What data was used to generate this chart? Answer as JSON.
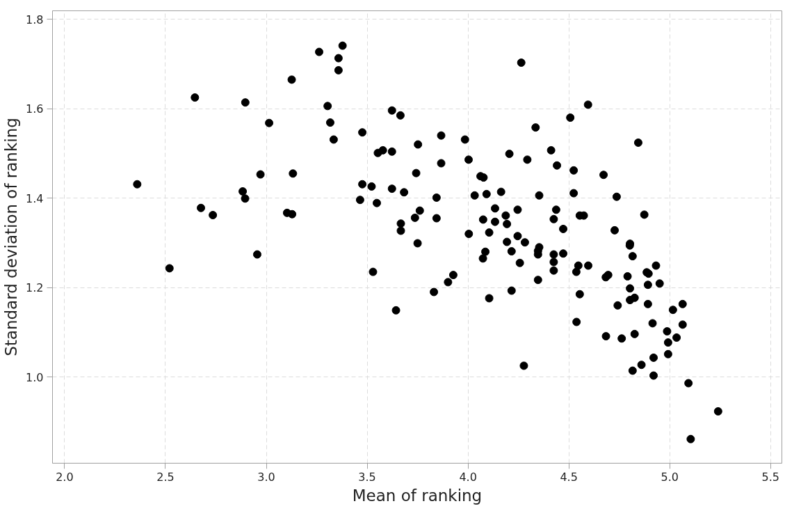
{
  "chart_data": {
    "type": "scatter",
    "xlabel": "Mean of ranking",
    "ylabel": "Standard deviation of ranking",
    "xlim": [
      1.94,
      5.556
    ],
    "ylim": [
      0.807,
      1.819
    ],
    "xticks": [
      {
        "value": 2,
        "label": "2.0"
      },
      2.5,
      {
        "value": 3,
        "label": "3.0"
      },
      3.5,
      {
        "value": 4,
        "label": "4.0"
      },
      4.5,
      {
        "value": 5,
        "label": "5.0"
      },
      5.5
    ],
    "yticks": [
      {
        "value": 1,
        "label": "1.0"
      },
      1.2,
      1.4,
      1.6,
      1.8
    ],
    "grid": true,
    "marker": "circle",
    "series": [
      {
        "color": "#000000",
        "x": [
          2.36,
          2.52,
          2.955,
          3.529,
          3.643,
          3.75,
          3.378,
          3.262,
          3.358,
          3.358,
          3.126,
          2.646,
          2.896,
          3.304,
          3.623,
          3.665,
          3.014,
          3.317,
          3.476,
          3.334,
          3.752,
          3.553,
          3.578,
          3.623,
          2.971,
          3.132,
          3.743,
          3.476,
          3.522,
          3.623,
          3.683,
          2.883,
          2.895,
          3.465,
          3.548,
          2.676,
          2.735,
          3.103,
          3.128,
          3.761,
          3.737,
          3.667,
          3.667,
          4.264,
          4.595,
          4.507,
          4.335,
          3.867,
          3.985,
          4.844,
          4.205,
          4.003,
          3.867,
          4.294,
          4.412,
          4.441,
          4.524,
          4.672,
          4.062,
          4.077,
          3.844,
          4.033,
          4.092,
          4.164,
          4.353,
          4.524,
          4.737,
          3.844,
          4.134,
          4.187,
          4.246,
          4.437,
          4.075,
          4.134,
          4.193,
          4.425,
          4.554,
          4.574,
          4.874,
          4.472,
          4.727,
          4.004,
          4.105,
          4.193,
          4.246,
          4.282,
          4.353,
          4.803,
          4.347,
          4.347,
          4.425,
          4.425,
          4.425,
          4.472,
          4.086,
          4.074,
          4.216,
          4.257,
          3.927,
          3.901,
          3.831,
          4.347,
          4.216,
          4.105,
          4.547,
          4.537,
          4.596,
          4.554,
          4.538,
          4.695,
          4.683,
          4.802,
          4.816,
          4.791,
          4.803,
          4.826,
          4.803,
          4.886,
          4.895,
          4.932,
          4.892,
          4.95,
          4.892,
          4.742,
          5.064,
          5.016,
          4.915,
          5.064,
          4.684,
          4.762,
          4.826,
          4.987,
          5.034,
          4.992,
          4.992,
          4.92,
          4.86,
          4.816,
          4.92,
          4.277,
          5.093,
          5.24,
          5.104
        ],
        "values": [
          1.431,
          1.243,
          1.274,
          1.235,
          1.149,
          1.299,
          1.741,
          1.727,
          1.713,
          1.686,
          1.665,
          1.625,
          1.614,
          1.606,
          1.596,
          1.585,
          1.568,
          1.569,
          1.547,
          1.531,
          1.52,
          1.501,
          1.507,
          1.504,
          1.453,
          1.455,
          1.456,
          1.431,
          1.426,
          1.421,
          1.413,
          1.415,
          1.399,
          1.396,
          1.389,
          1.378,
          1.362,
          1.367,
          1.364,
          1.372,
          1.356,
          1.343,
          1.327,
          1.703,
          1.609,
          1.58,
          1.558,
          1.54,
          1.531,
          1.524,
          1.499,
          1.486,
          1.478,
          1.486,
          1.507,
          1.473,
          1.462,
          1.452,
          1.449,
          1.446,
          1.401,
          1.406,
          1.409,
          1.414,
          1.406,
          1.411,
          1.403,
          1.355,
          1.377,
          1.361,
          1.374,
          1.374,
          1.352,
          1.347,
          1.342,
          1.353,
          1.361,
          1.361,
          1.363,
          1.331,
          1.328,
          1.32,
          1.323,
          1.302,
          1.315,
          1.301,
          1.29,
          1.298,
          1.282,
          1.274,
          1.274,
          1.257,
          1.238,
          1.276,
          1.28,
          1.265,
          1.281,
          1.255,
          1.228,
          1.212,
          1.19,
          1.217,
          1.193,
          1.176,
          1.249,
          1.235,
          1.249,
          1.185,
          1.123,
          1.228,
          1.223,
          1.294,
          1.27,
          1.225,
          1.198,
          1.177,
          1.172,
          1.234,
          1.231,
          1.249,
          1.206,
          1.209,
          1.163,
          1.16,
          1.163,
          1.15,
          1.12,
          1.117,
          1.091,
          1.086,
          1.096,
          1.102,
          1.088,
          1.077,
          1.051,
          1.043,
          1.027,
          1.014,
          1.003,
          1.025,
          0.986,
          0.923,
          0.861
        ]
      }
    ]
  }
}
